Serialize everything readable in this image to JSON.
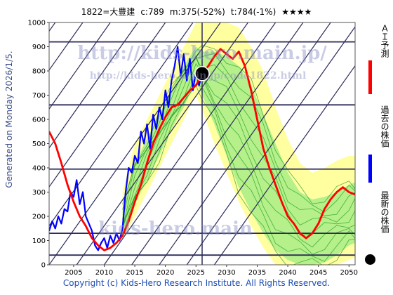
{
  "header": {
    "code": "1822=大豊建",
    "current": "c:789",
    "min": "m:375(-52%)",
    "target": "t:784(-1%)",
    "rating": "★★★★"
  },
  "watermark": {
    "line1": "http://kids-hero.main.jp/",
    "line2": "http://kids-hero.main.jp/code1822.html",
    "line3": "kids-hero.main"
  },
  "generated_text": "Generated on Monday 2026/1/5.",
  "copyright": "Copyright (c) Kids-Hero Research Institute. All Rights Reserved.",
  "legend": {
    "ai": "ＡＩ予測",
    "past": "過去の株価",
    "latest": "最新の株価"
  },
  "colors": {
    "ai": "#ff0000",
    "past": "#0000ff",
    "latest": "#000000",
    "band_outer": "#ffffa0",
    "band_inner": "#b5f08a",
    "sim_line": "#2aa02a",
    "grid": "#2b2b5a"
  },
  "chart_data": {
    "type": "line",
    "title": "",
    "xlim": [
      2001,
      2051
    ],
    "ylim": [
      0,
      1000
    ],
    "xticks": [
      2005,
      2010,
      2015,
      2020,
      2025,
      2030,
      2035,
      2040,
      2045,
      2050
    ],
    "yticks": [
      0,
      100,
      200,
      300,
      400,
      500,
      600,
      700,
      800,
      900,
      1000
    ],
    "hlines": [
      40,
      130,
      395,
      660,
      920
    ],
    "vline": 2026.0,
    "latest_point": {
      "x": 2026.0,
      "y": 789
    },
    "series": [
      {
        "name": "過去の株価",
        "x": [
          2001.0,
          2001.5,
          2002.0,
          2002.5,
          2003.0,
          2003.5,
          2004.0,
          2004.5,
          2005.0,
          2005.5,
          2006.0,
          2006.5,
          2007.0,
          2007.5,
          2008.0,
          2008.5,
          2009.0,
          2009.5,
          2010.0,
          2010.5,
          2011.0,
          2011.5,
          2012.0,
          2012.5,
          2013.0,
          2013.5,
          2014.0,
          2014.5,
          2015.0,
          2015.5,
          2016.0,
          2016.5,
          2017.0,
          2017.5,
          2018.0,
          2018.5,
          2019.0,
          2019.5,
          2020.0,
          2020.5,
          2021.0,
          2021.5,
          2022.0,
          2022.5,
          2023.0,
          2023.5,
          2024.0,
          2024.5,
          2025.0,
          2025.5,
          2026.0
        ],
        "values": [
          140,
          180,
          150,
          200,
          170,
          230,
          220,
          300,
          280,
          350,
          250,
          300,
          200,
          170,
          140,
          80,
          60,
          90,
          110,
          70,
          120,
          90,
          130,
          100,
          150,
          300,
          400,
          380,
          450,
          420,
          550,
          500,
          580,
          480,
          620,
          560,
          650,
          600,
          720,
          650,
          760,
          820,
          900,
          780,
          870,
          760,
          850,
          720,
          800,
          740,
          789
        ]
      },
      {
        "name": "ＡＩ予測",
        "x": [
          2001.0,
          2002.0,
          2003.0,
          2004.0,
          2005.0,
          2006.0,
          2007.0,
          2008.0,
          2009.0,
          2010.0,
          2011.0,
          2012.0,
          2013.0,
          2014.0,
          2015.0,
          2016.0,
          2017.0,
          2018.0,
          2019.0,
          2020.0,
          2021.0,
          2022.0,
          2023.0,
          2024.0,
          2025.0,
          2026.0,
          2027.0,
          2028.0,
          2029.0,
          2030.0,
          2031.0,
          2032.0,
          2033.0,
          2034.0,
          2035.0,
          2036.0,
          2037.0,
          2038.0,
          2039.0,
          2040.0,
          2041.0,
          2042.0,
          2043.0,
          2044.0,
          2045.0,
          2046.0,
          2047.0,
          2048.0,
          2049.0,
          2050.0,
          2051.0
        ],
        "values": [
          550,
          500,
          420,
          330,
          260,
          200,
          160,
          110,
          80,
          60,
          70,
          90,
          120,
          180,
          260,
          330,
          420,
          500,
          560,
          610,
          650,
          660,
          690,
          720,
          740,
          789,
          820,
          860,
          890,
          870,
          850,
          880,
          820,
          720,
          600,
          480,
          400,
          330,
          260,
          200,
          170,
          130,
          110,
          130,
          170,
          230,
          270,
          300,
          320,
          300,
          290
        ]
      }
    ],
    "bands": [
      {
        "name": "outer",
        "x": [
          2013,
          2015,
          2017,
          2019,
          2021,
          2023,
          2025,
          2026,
          2028,
          2030,
          2032,
          2034,
          2036,
          2038,
          2040,
          2042,
          2044,
          2046,
          2048,
          2050,
          2051
        ],
        "upper": [
          300,
          500,
          600,
          700,
          800,
          900,
          1000,
          1000,
          1000,
          1000,
          980,
          900,
          800,
          650,
          520,
          420,
          380,
          400,
          430,
          450,
          450
        ],
        "lower": [
          100,
          200,
          300,
          400,
          500,
          600,
          700,
          640,
          500,
          380,
          260,
          160,
          70,
          0,
          0,
          0,
          0,
          0,
          0,
          20,
          30
        ]
      },
      {
        "name": "inner",
        "x": [
          2013,
          2015,
          2017,
          2019,
          2021,
          2023,
          2025,
          2026,
          2028,
          2030,
          2032,
          2034,
          2036,
          2038,
          2040,
          2042,
          2044,
          2046,
          2048,
          2050,
          2051
        ],
        "upper": [
          220,
          420,
          520,
          620,
          720,
          820,
          900,
          880,
          880,
          860,
          820,
          740,
          620,
          500,
          380,
          300,
          270,
          280,
          300,
          330,
          340
        ],
        "lower": [
          120,
          250,
          350,
          450,
          560,
          650,
          760,
          700,
          580,
          450,
          320,
          220,
          130,
          60,
          20,
          0,
          0,
          10,
          40,
          80,
          90
        ]
      }
    ]
  }
}
